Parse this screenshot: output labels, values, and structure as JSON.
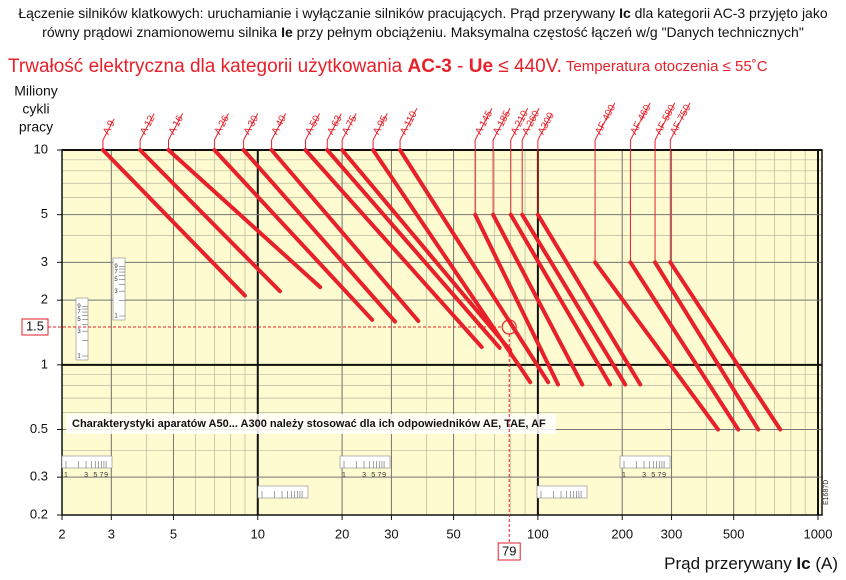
{
  "header": {
    "lines": [
      [
        {
          "text": "Łączenie silników klatkowych: uruchamianie i wyłączanie silników pracujących. Prąd przerywany "
        },
        {
          "text": "Ic",
          "bold": true
        },
        {
          "text": " dla kategorii AC-3 przyjęto jako"
        }
      ],
      [
        {
          "text": "równy prądowi znamionowemu silnika "
        },
        {
          "text": "Ie",
          "bold": true
        },
        {
          "text": " przy pełnym obciążeniu. Maksymalna częstość łączeń w/g \"Danych technicznych\""
        }
      ]
    ]
  },
  "chart_data": {
    "type": "line",
    "title": [
      {
        "text": "Trwałość elektryczna dla kategorii użytkowania "
      },
      {
        "text": "AC-3",
        "bold": true
      },
      {
        "text": " - "
      },
      {
        "text": "Ue",
        "bold": true
      },
      {
        "text": " ≤ 440V."
      }
    ],
    "subtitle": " Temperatura otoczenia ≤ 55˚C",
    "y_label": [
      "Miliony",
      "cykli",
      "pracy"
    ],
    "x_label": [
      {
        "text": "Prąd przerywany "
      },
      {
        "text": "Ic",
        "bold": true
      },
      {
        "text": " (A)"
      }
    ],
    "note": "Charakterystyki aparatów A50... A300 należy stosować dla ich odpowiedników AE, TAE, AF",
    "code": "E1687D",
    "xscale": "log",
    "yscale": "log",
    "grid": true,
    "minor_grid": true,
    "xlim": [
      2,
      1000
    ],
    "ylim": [
      0.2,
      10
    ],
    "xticks": [
      2,
      3,
      5,
      10,
      20,
      30,
      50,
      100,
      200,
      300,
      500,
      1000
    ],
    "yticks": [
      0.2,
      0.3,
      0.5,
      1,
      2,
      3,
      5,
      10
    ],
    "minor_scale_labels": [
      1,
      3,
      5,
      7,
      9
    ],
    "marker": {
      "x": 79,
      "y": 1.5
    },
    "series": [
      {
        "name": "A 9",
        "color": "#e8202a",
        "x": [
          2.8,
          9
        ],
        "values": [
          10,
          2.1
        ]
      },
      {
        "name": "A 12",
        "color": "#e8202a",
        "x": [
          3.8,
          12
        ],
        "values": [
          10,
          2.2
        ]
      },
      {
        "name": "A 16",
        "color": "#e8202a",
        "x": [
          4.8,
          16.7
        ],
        "values": [
          10,
          2.3
        ]
      },
      {
        "name": "A 26",
        "color": "#e8202a",
        "x": [
          7,
          25.6
        ],
        "values": [
          10,
          1.62
        ]
      },
      {
        "name": "A 30",
        "color": "#e8202a",
        "x": [
          8.9,
          30.9
        ],
        "values": [
          10,
          1.59
        ]
      },
      {
        "name": "A 40",
        "color": "#e8202a",
        "x": [
          11.2,
          37.4
        ],
        "values": [
          10,
          1.6
        ]
      },
      {
        "name": "A 50",
        "color": "#e8202a",
        "x": [
          14.8,
          63
        ],
        "values": [
          10,
          1.21
        ]
      },
      {
        "name": "A 63",
        "color": "#e8202a",
        "x": [
          17.7,
          73
        ],
        "values": [
          10,
          1.2
        ]
      },
      {
        "name": "A 75",
        "color": "#e8202a",
        "x": [
          20,
          79.6
        ],
        "values": [
          10,
          1.17
        ]
      },
      {
        "name": "A 95",
        "color": "#e8202a",
        "x": [
          25.8,
          93.9
        ],
        "values": [
          10,
          0.83
        ]
      },
      {
        "name": "A 110",
        "color": "#e8202a",
        "x": [
          32.2,
          108.8
        ],
        "values": [
          10,
          0.83
        ]
      },
      {
        "name": "A 145",
        "color": "#e8202a",
        "x": [
          59.7,
          118
        ],
        "values": [
          5,
          0.81
        ]
      },
      {
        "name": "A 185",
        "color": "#e8202a",
        "x": [
          69.2,
          144
        ],
        "values": [
          5,
          0.81
        ]
      },
      {
        "name": "A 210",
        "color": "#e8202a",
        "x": [
          80,
          181
        ],
        "values": [
          5,
          0.81
        ]
      },
      {
        "name": "A 260",
        "color": "#e8202a",
        "x": [
          87.9,
          205
        ],
        "values": [
          5,
          0.81
        ]
      },
      {
        "name": "A300",
        "color": "#e8202a",
        "x": [
          100,
          232
        ],
        "values": [
          5,
          0.81
        ]
      },
      {
        "name": "AF 400",
        "color": "#e8202a",
        "x": [
          160,
          440
        ],
        "values": [
          3,
          0.5
        ]
      },
      {
        "name": "AF 460",
        "color": "#e8202a",
        "x": [
          214,
          519
        ],
        "values": [
          3,
          0.5
        ]
      },
      {
        "name": "AF 580",
        "color": "#e8202a",
        "x": [
          262,
          612
        ],
        "values": [
          3,
          0.5
        ]
      },
      {
        "name": "AF 750",
        "color": "#e8202a",
        "x": [
          297,
          733
        ],
        "values": [
          3,
          0.5
        ]
      }
    ]
  }
}
